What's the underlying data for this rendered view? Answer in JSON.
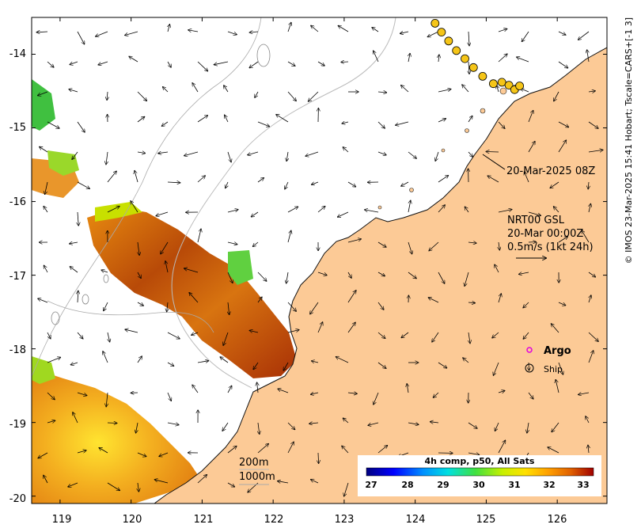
{
  "map": {
    "lon_ticks": [
      "119",
      "120",
      "121",
      "122",
      "123",
      "124",
      "125",
      "126"
    ],
    "lat_ticks": [
      "-14",
      "-15",
      "-16",
      "-17",
      "-18",
      "-19",
      "-20"
    ],
    "lon_range": [
      118.6,
      126.7
    ],
    "lat_range": [
      -20.1,
      -13.5
    ]
  },
  "annotations": {
    "ship_time": "20-Mar-2025 08Z",
    "current_source": "NRT00 GSL",
    "current_time": "20-Mar 00:00Z",
    "current_scale": "0.5m/s (1kt 24h)",
    "contour_200": "200m",
    "contour_1000": "1000m"
  },
  "legend": {
    "argo_label": "Argo",
    "ship_label": "Ship",
    "argo_color": "#e000e0"
  },
  "colorbar": {
    "title": "4h comp, p50, All Sats",
    "ticks": [
      "27",
      "28",
      "29",
      "30",
      "31",
      "32",
      "33"
    ],
    "range": [
      26.6,
      33.6
    ]
  },
  "credit": "© IMOS 23-Mar-2025 15:41 Hobart; Tscale=CARS+[-1 3]",
  "colors": {
    "land": "#fcca96",
    "ship_fill": "#f5c518"
  },
  "ship_track": [
    {
      "lon": 124.28,
      "lat": -13.58
    },
    {
      "lon": 124.37,
      "lat": -13.7
    },
    {
      "lon": 124.47,
      "lat": -13.82
    },
    {
      "lon": 124.58,
      "lat": -13.95
    },
    {
      "lon": 124.7,
      "lat": -14.06
    },
    {
      "lon": 124.82,
      "lat": -14.18
    },
    {
      "lon": 124.95,
      "lat": -14.3
    },
    {
      "lon": 125.1,
      "lat": -14.4
    },
    {
      "lon": 125.22,
      "lat": -14.38
    },
    {
      "lon": 125.32,
      "lat": -14.42
    },
    {
      "lon": 125.4,
      "lat": -14.48
    },
    {
      "lon": 125.47,
      "lat": -14.43
    }
  ]
}
